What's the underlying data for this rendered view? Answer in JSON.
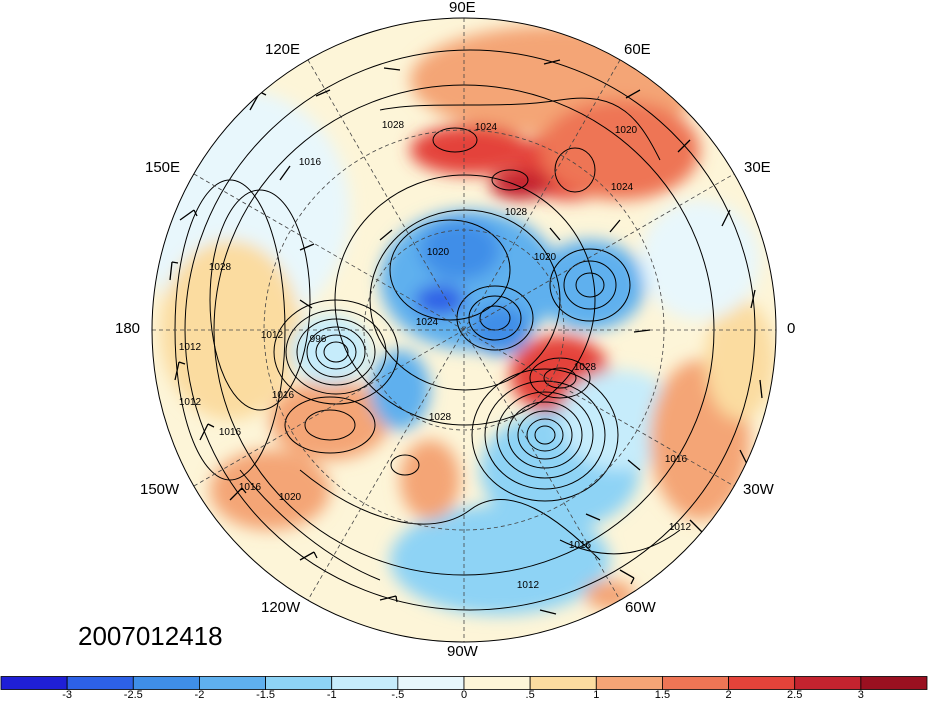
{
  "longitude_labels": [
    {
      "text": "90E"
    },
    {
      "text": "120E"
    },
    {
      "text": "60E"
    },
    {
      "text": "150E"
    },
    {
      "text": "30E"
    },
    {
      "text": "180"
    },
    {
      "text": "0"
    },
    {
      "text": "150W"
    },
    {
      "text": "30W"
    },
    {
      "text": "120W"
    },
    {
      "text": "60W"
    },
    {
      "text": "90W"
    }
  ],
  "contour_labels": [
    "996",
    "1012",
    "1012",
    "1012",
    "1012",
    "1016",
    "1016",
    "1016",
    "1016",
    "1016",
    "1020",
    "1020",
    "1020",
    "1020",
    "1024",
    "1024",
    "1024",
    "1028",
    "1028",
    "1028",
    "1028",
    "1028",
    "1012",
    "1016"
  ],
  "timestamp": "2007012418",
  "colorbar": {
    "colors": [
      "#1f1fd6",
      "#2d61e6",
      "#3f8ee8",
      "#5fb0ee",
      "#8ed3f5",
      "#c6ecfb",
      "#e8f7fc",
      "#fdf5d8",
      "#fbdca0",
      "#f4a576",
      "#ee7555",
      "#e4433a",
      "#c4232f",
      "#9a1020"
    ],
    "tick_labels": [
      "-3",
      "-2.5",
      "-2",
      "-1.5",
      "-1",
      "-.5",
      "0",
      ".5",
      "1",
      "1.5",
      "2",
      "2.5",
      "3"
    ]
  }
}
